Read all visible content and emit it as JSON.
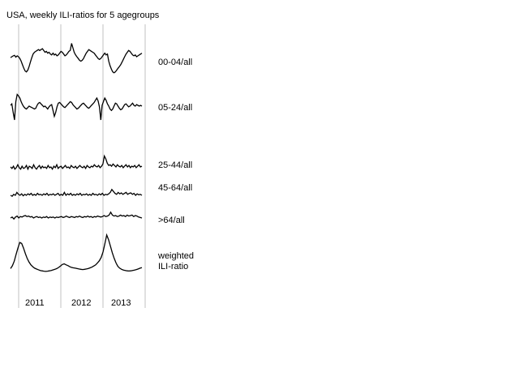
{
  "chart_data": {
    "type": "line",
    "title": "USA, weekly ILI-ratios for 5 agegroups",
    "x_tick_labels": [
      "2011",
      "2012",
      "2013"
    ],
    "grid": "vertical lines at year boundaries",
    "series": [
      {
        "name": "00-04/all",
        "values": [
          0.98,
          1.0,
          1.02,
          1.03,
          0.99,
          1.02,
          1.0,
          0.96,
          0.9,
          0.82,
          0.74,
          0.68,
          0.66,
          0.7,
          0.78,
          0.88,
          0.98,
          1.06,
          1.1,
          1.12,
          1.14,
          1.16,
          1.14,
          1.16,
          1.18,
          1.14,
          1.1,
          1.12,
          1.08,
          1.1,
          1.06,
          1.04,
          1.08,
          1.04,
          1.06,
          1.02,
          1.04,
          1.08,
          1.12,
          1.1,
          1.06,
          1.02,
          1.04,
          1.08,
          1.12,
          1.14,
          1.3,
          1.2,
          1.1,
          1.04,
          1.0,
          0.96,
          0.92,
          0.9,
          0.92,
          0.96,
          1.02,
          1.08,
          1.12,
          1.16,
          1.14,
          1.12,
          1.1,
          1.08,
          1.04,
          1.0,
          0.96,
          0.94,
          0.96,
          1.0,
          1.04,
          1.08,
          1.04,
          1.06,
          0.9,
          0.8,
          0.72,
          0.66,
          0.64,
          0.66,
          0.7,
          0.74,
          0.78,
          0.82,
          0.88,
          0.94,
          1.0,
          1.06,
          1.1,
          1.14,
          1.12,
          1.08,
          1.04,
          1.02,
          1.04,
          1.0,
          1.02,
          1.04,
          1.06,
          1.08
        ]
      },
      {
        "name": "05-24/all",
        "values": [
          1.0,
          1.04,
          0.8,
          0.6,
          1.1,
          1.3,
          1.26,
          1.2,
          1.1,
          1.02,
          0.96,
          0.92,
          0.9,
          0.94,
          0.98,
          0.96,
          0.94,
          0.92,
          0.9,
          0.92,
          1.0,
          1.06,
          1.08,
          1.04,
          1.0,
          0.96,
          0.98,
          0.94,
          0.9,
          0.96,
          1.0,
          1.02,
          0.86,
          0.7,
          0.8,
          0.96,
          1.06,
          1.08,
          1.04,
          1.0,
          0.96,
          0.94,
          0.98,
          1.02,
          1.06,
          1.1,
          1.08,
          1.02,
          0.98,
          0.94,
          0.9,
          0.92,
          0.96,
          1.0,
          1.04,
          1.06,
          1.02,
          0.98,
          0.94,
          0.92,
          0.96,
          1.0,
          1.04,
          1.08,
          1.14,
          1.2,
          1.12,
          0.96,
          0.6,
          1.0,
          1.1,
          1.2,
          1.14,
          1.04,
          0.98,
          0.9,
          0.86,
          0.9,
          0.98,
          1.06,
          1.04,
          0.98,
          0.92,
          0.88,
          0.9,
          0.96,
          1.02,
          1.04,
          1.0,
          0.96,
          0.98,
          1.02,
          1.06,
          1.0,
          0.98,
          1.02,
          1.0,
          0.98,
          1.0,
          0.98
        ]
      },
      {
        "name": "25-44/all",
        "values": [
          1.0,
          0.96,
          1.02,
          0.94,
          0.98,
          1.06,
          0.98,
          0.94,
          1.02,
          0.96,
          0.98,
          1.04,
          0.94,
          1.02,
          1.0,
          0.96,
          1.06,
          0.98,
          0.94,
          1.0,
          1.04,
          0.96,
          1.02,
          0.98,
          1.0,
          0.96,
          1.04,
          0.98,
          1.0,
          0.94,
          1.02,
          0.98,
          1.06,
          0.96,
          1.0,
          1.02,
          0.96,
          1.0,
          1.04,
          0.98,
          1.0,
          0.96,
          1.04,
          1.0,
          0.98,
          1.02,
          0.96,
          1.0,
          1.04,
          1.0,
          0.98,
          1.02,
          0.96,
          1.04,
          1.0,
          0.98,
          1.02,
          1.0,
          1.06,
          1.02,
          1.0,
          1.04,
          0.98,
          1.02,
          1.08,
          1.3,
          1.22,
          1.1,
          1.04,
          1.06,
          1.02,
          1.08,
          1.04,
          1.0,
          1.06,
          1.02,
          1.0,
          1.04,
          0.98,
          1.02,
          1.06,
          1.0,
          1.04,
          0.98,
          1.02,
          1.0,
          1.04,
          0.98,
          1.02,
          1.06,
          1.0,
          1.02
        ]
      },
      {
        "name": "45-64/all",
        "values": [
          1.0,
          0.98,
          1.02,
          1.0,
          1.06,
          1.02,
          1.0,
          1.03,
          0.99,
          1.02,
          1.0,
          1.03,
          1.01,
          1.04,
          1.0,
          1.02,
          1.0,
          1.04,
          1.01,
          1.02,
          1.0,
          1.03,
          1.01,
          1.04,
          1.0,
          1.02,
          1.01,
          1.03,
          1.0,
          1.02,
          1.04,
          1.0,
          1.02,
          1.0,
          1.06,
          1.0,
          1.03,
          1.01,
          1.04,
          1.0,
          1.02,
          1.0,
          1.03,
          1.01,
          1.04,
          1.0,
          1.02,
          1.01,
          1.03,
          1.0,
          1.02,
          1.0,
          1.04,
          1.01,
          1.02,
          1.0,
          1.03,
          1.01,
          1.04,
          1.0,
          1.02,
          1.01,
          1.03,
          1.06,
          1.12,
          1.08,
          1.04,
          1.02,
          1.06,
          1.03,
          1.05,
          1.02,
          1.04,
          1.06,
          1.02,
          1.04,
          1.05,
          1.02,
          1.04,
          1.0,
          1.03,
          1.01,
          1.02,
          1.0
        ]
      },
      {
        "name": ">64/all",
        "values": [
          1.0,
          1.02,
          0.98,
          1.02,
          1.04,
          1.0,
          1.03,
          1.02,
          1.04,
          1.05,
          1.03,
          1.04,
          1.02,
          1.03,
          1.0,
          1.02,
          1.03,
          1.01,
          1.02,
          1.0,
          1.02,
          1.01,
          1.03,
          1.0,
          1.02,
          1.01,
          1.02,
          1.0,
          1.02,
          1.01,
          1.02,
          1.03,
          1.01,
          1.02,
          1.04,
          1.02,
          1.01,
          1.03,
          1.02,
          1.01,
          1.03,
          1.02,
          1.04,
          1.02,
          1.01,
          1.03,
          1.02,
          1.04,
          1.02,
          1.03,
          1.01,
          1.03,
          1.02,
          1.04,
          1.03,
          1.02,
          1.03,
          1.05,
          1.03,
          1.04,
          1.06,
          1.12,
          1.06,
          1.04,
          1.05,
          1.03,
          1.04,
          1.06,
          1.04,
          1.05,
          1.03,
          1.06,
          1.04,
          1.05,
          1.06,
          1.03,
          1.05,
          1.04,
          1.02,
          1.01,
          1.0
        ]
      },
      {
        "name": "weighted ILI-ratio",
        "values": [
          1.2,
          1.35,
          1.6,
          1.95,
          2.3,
          2.6,
          2.55,
          2.3,
          2.0,
          1.75,
          1.55,
          1.4,
          1.3,
          1.22,
          1.18,
          1.14,
          1.1,
          1.08,
          1.06,
          1.05,
          1.06,
          1.08,
          1.1,
          1.13,
          1.16,
          1.2,
          1.26,
          1.34,
          1.42,
          1.45,
          1.4,
          1.36,
          1.3,
          1.26,
          1.24,
          1.22,
          1.2,
          1.18,
          1.16,
          1.15,
          1.16,
          1.18,
          1.2,
          1.24,
          1.28,
          1.34,
          1.4,
          1.5,
          1.62,
          1.8,
          2.1,
          2.55,
          3.0,
          2.75,
          2.4,
          2.05,
          1.75,
          1.5,
          1.32,
          1.22,
          1.16,
          1.12,
          1.1,
          1.08,
          1.07,
          1.08,
          1.1,
          1.12,
          1.15,
          1.18,
          1.22,
          1.25
        ]
      }
    ]
  }
}
